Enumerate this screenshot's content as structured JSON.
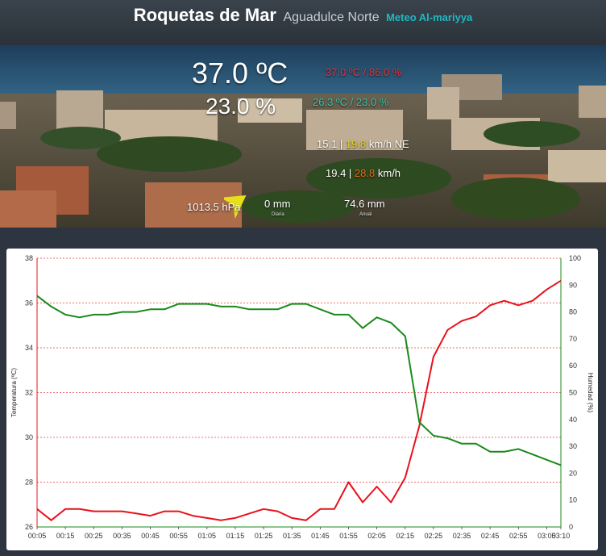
{
  "header": {
    "title": "Roquetas de Mar",
    "subtitle": "Aguadulce Norte",
    "brand": "Meteo Al-mariyya"
  },
  "weather": {
    "temperature": "37.0 ºC",
    "humidity": "23.0 %",
    "max_temp_hum": "37.0 ºC / 86.0 %",
    "min_temp_hum": "26.3 ºC / 23.0 %",
    "wind_avg": "15.1 |",
    "wind_max": "19.8",
    "wind_unit_dir": "km/h NE",
    "gust_avg": "19.4 |",
    "gust_max": "28.8",
    "gust_unit": "km/h",
    "pressure": "1013.5 hPa",
    "rain_day": "0 mm",
    "rain_day_label": "Diaria",
    "rain_year": "74.6 mm",
    "rain_year_label": "Anual",
    "wind_direction": "NE",
    "colors": {
      "max": "#e8323c",
      "min": "#2fc7b0",
      "wind_max": "#e6d21e",
      "gust_max": "#e66a1a",
      "arrow": "#e6e01a"
    }
  },
  "chart_data": {
    "type": "line",
    "x": [
      "00:05",
      "00:10",
      "00:15",
      "00:20",
      "00:25",
      "00:30",
      "00:35",
      "00:40",
      "00:45",
      "00:50",
      "00:55",
      "01:00",
      "01:05",
      "01:10",
      "01:15",
      "01:20",
      "01:25",
      "01:30",
      "01:35",
      "01:40",
      "01:45",
      "01:50",
      "01:55",
      "02:00",
      "02:05",
      "02:10",
      "02:15",
      "02:20",
      "02:25",
      "02:30",
      "02:35",
      "02:40",
      "02:45",
      "02:50",
      "02:55",
      "03:00",
      "03:05",
      "03:10"
    ],
    "tick_labels": [
      "00:05",
      "00:15",
      "00:25",
      "00:35",
      "00:45",
      "00:55",
      "01:05",
      "01:15",
      "01:25",
      "01:35",
      "01:45",
      "01:55",
      "02:05",
      "02:15",
      "02:25",
      "02:35",
      "02:45",
      "02:55",
      "03:05",
      "03:10"
    ],
    "series": [
      {
        "name": "Temperatura",
        "axis": "left",
        "color": "#e8111b",
        "values": [
          26.8,
          26.3,
          26.8,
          26.8,
          26.7,
          26.7,
          26.7,
          26.6,
          26.5,
          26.7,
          26.7,
          26.5,
          26.4,
          26.3,
          26.4,
          26.6,
          26.8,
          26.7,
          26.4,
          26.3,
          26.8,
          26.8,
          28.0,
          27.1,
          27.8,
          27.1,
          28.2,
          30.5,
          33.6,
          34.8,
          35.2,
          35.4,
          35.9,
          36.1,
          35.9,
          36.1,
          36.6,
          37.0
        ]
      },
      {
        "name": "Humedad",
        "axis": "right",
        "color": "#1a8a1a",
        "values": [
          86,
          82,
          79,
          78,
          79,
          79,
          80,
          80,
          81,
          81,
          83,
          83,
          83,
          82,
          82,
          81,
          81,
          81,
          83,
          83,
          81,
          79,
          79,
          74,
          78,
          76,
          71,
          39,
          34,
          33,
          31,
          31,
          28,
          28,
          29,
          27,
          25,
          23
        ]
      }
    ],
    "y_left": {
      "label": "Temperatura (ºC)",
      "ticks": [
        "26",
        "28",
        "30",
        "32",
        "34",
        "36",
        "38"
      ],
      "min": 26,
      "max": 38
    },
    "y_right": {
      "label": "Humedad (%)",
      "ticks": [
        "0",
        "10",
        "20",
        "30",
        "40",
        "50",
        "60",
        "70",
        "80",
        "90",
        "100"
      ],
      "min": 0,
      "max": 100
    },
    "grid": true
  }
}
